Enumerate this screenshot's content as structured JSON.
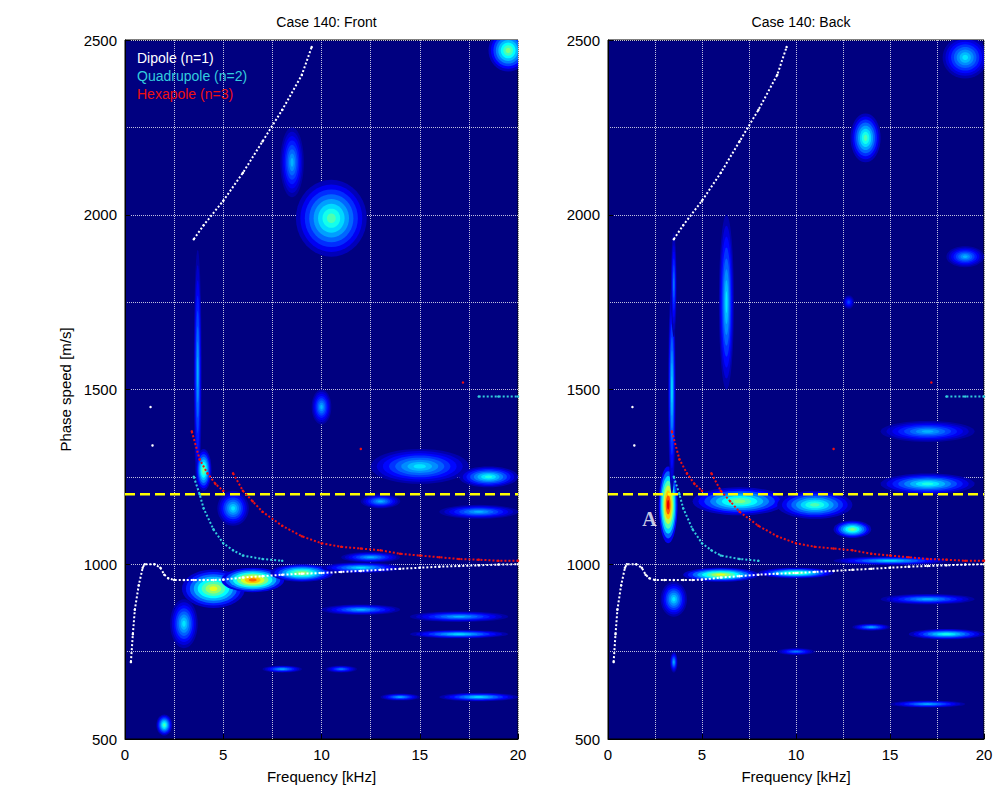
{
  "chart_data": [
    {
      "type": "heatmap",
      "title": "Case 140: Front",
      "x_label": "Frequency [kHz]",
      "y_label": "Phase speed [m/s]",
      "xlim": [
        0,
        20
      ],
      "xticks": [
        0,
        5,
        10,
        15,
        20
      ],
      "ylim": [
        500,
        2500
      ],
      "yticks": [
        500,
        1000,
        1500,
        2000,
        2500
      ],
      "grid": true,
      "legend": "upper left",
      "zlim": [
        0,
        1
      ],
      "blobs": [
        [
          4.5,
          930,
          1.6,
          55,
          0.6
        ],
        [
          6.5,
          955,
          1.6,
          35,
          0.78
        ],
        [
          9,
          975,
          1.6,
          25,
          0.55
        ],
        [
          12,
          990,
          2,
          15,
          0.35
        ],
        [
          3,
          830,
          0.7,
          70,
          0.35
        ],
        [
          3.7,
          1550,
          0.2,
          350,
          0.3
        ],
        [
          4,
          1270,
          0.4,
          60,
          0.5
        ],
        [
          5.5,
          1160,
          0.8,
          50,
          0.35
        ],
        [
          10.5,
          1990,
          1.8,
          110,
          0.45
        ],
        [
          8.5,
          2150,
          0.6,
          100,
          0.3
        ],
        [
          19.5,
          2470,
          1,
          60,
          0.5
        ],
        [
          10,
          1450,
          0.5,
          50,
          0.3
        ],
        [
          15,
          1280,
          2.5,
          50,
          0.35
        ],
        [
          18.5,
          1250,
          1.5,
          30,
          0.4
        ],
        [
          8,
          700,
          1,
          10,
          0.3
        ],
        [
          12,
          870,
          2,
          15,
          0.3
        ],
        [
          17,
          850,
          2.5,
          15,
          0.3
        ],
        [
          17,
          800,
          2.5,
          12,
          0.35
        ],
        [
          18,
          620,
          2,
          12,
          0.35
        ],
        [
          14,
          620,
          1,
          10,
          0.3
        ],
        [
          11,
          700,
          0.8,
          10,
          0.25
        ],
        [
          18,
          1150,
          2,
          20,
          0.3
        ],
        [
          2,
          540,
          0.4,
          30,
          0.45
        ],
        [
          12.5,
          1020,
          1.5,
          15,
          0.3
        ],
        [
          13,
          1180,
          1,
          20,
          0.3
        ]
      ],
      "reference_line": {
        "y": 1200,
        "color": "#ffff00",
        "line_style": "dashed"
      },
      "series": [
        {
          "name": "Dipole (n=1)",
          "color": "#ffffff",
          "type": "line",
          "line_style": "dotted",
          "marker": "dot",
          "points": [
            [
              0.3,
              720
            ],
            [
              0.4,
              800
            ],
            [
              0.5,
              870
            ],
            [
              0.7,
              940
            ],
            [
              0.9,
              990
            ],
            [
              1,
              1000
            ],
            [
              1.5,
              1000
            ],
            [
              1.8,
              990
            ],
            [
              2,
              970
            ],
            [
              2.2,
              960
            ],
            [
              2.5,
              955
            ],
            [
              3,
              955
            ],
            [
              3.5,
              955
            ],
            [
              4,
              955
            ],
            [
              4.5,
              955
            ],
            [
              5,
              956
            ],
            [
              6,
              962
            ],
            [
              7,
              966
            ],
            [
              8,
              970
            ],
            [
              9,
              973
            ],
            [
              10,
              975
            ],
            [
              11,
              978
            ],
            [
              12,
              981
            ],
            [
              13,
              984
            ],
            [
              14,
              987
            ],
            [
              15,
              990
            ],
            [
              16,
              993
            ],
            [
              17,
              995
            ],
            [
              18,
              997
            ],
            [
              19,
              999
            ],
            [
              20,
              1000
            ],
            null,
            [
              3.5,
              1930
            ],
            [
              4,
              1970
            ],
            [
              5,
              2040
            ],
            [
              6,
              2120
            ],
            [
              7,
              2210
            ],
            [
              8,
              2300
            ],
            [
              9,
              2400
            ],
            [
              9.5,
              2480
            ],
            null,
            [
              1.3,
              1450
            ],
            null,
            [
              1.4,
              1340
            ]
          ]
        },
        {
          "name": "Quadrupole (n=2)",
          "color": "#33ccdd",
          "type": "line",
          "line_style": "dotted",
          "marker": "dot",
          "points": [
            [
              3.5,
              1250
            ],
            [
              3.8,
              1200
            ],
            [
              4,
              1160
            ],
            [
              4.5,
              1100
            ],
            [
              5,
              1060
            ],
            [
              5.5,
              1040
            ],
            [
              6,
              1025
            ],
            [
              7,
              1015
            ],
            [
              8,
              1010
            ],
            null,
            [
              18,
              1480
            ],
            [
              19,
              1480
            ],
            [
              20,
              1480
            ]
          ]
        },
        {
          "name": "Hexapole (n=3)",
          "color": "#ee1111",
          "type": "line",
          "line_style": "dotted",
          "marker": "dot",
          "points": [
            [
              3.4,
              1380
            ],
            [
              3.8,
              1300
            ],
            [
              4.2,
              1260
            ],
            [
              4.6,
              1230
            ],
            [
              5,
              1210
            ],
            null,
            [
              5.5,
              1260
            ],
            [
              6,
              1210
            ],
            [
              6.5,
              1180
            ],
            [
              7,
              1150
            ],
            [
              8,
              1110
            ],
            [
              9,
              1080
            ],
            [
              10,
              1060
            ],
            [
              11,
              1050
            ],
            [
              12,
              1045
            ],
            [
              13,
              1040
            ],
            [
              14,
              1030
            ],
            [
              15,
              1025
            ],
            [
              16,
              1020
            ],
            [
              17,
              1015
            ],
            [
              18,
              1013
            ],
            [
              19,
              1010
            ],
            [
              20,
              1010
            ],
            null,
            [
              12,
              1330
            ],
            null,
            [
              17.2,
              1520
            ]
          ]
        }
      ]
    },
    {
      "type": "heatmap",
      "title": "Case 140: Back",
      "x_label": "Frequency [kHz]",
      "xlim": [
        0,
        20
      ],
      "xticks": [
        0,
        5,
        10,
        15,
        20
      ],
      "ylim": [
        500,
        2500
      ],
      "yticks": [
        500,
        1000,
        1500,
        2000,
        2500
      ],
      "grid": true,
      "zlim": [
        0,
        1
      ],
      "blobs": [
        [
          3.2,
          1170,
          0.5,
          110,
          0.9
        ],
        [
          3.4,
          1500,
          0.2,
          300,
          0.35
        ],
        [
          3.5,
          1800,
          0.15,
          150,
          0.25
        ],
        [
          6.3,
          1750,
          0.4,
          250,
          0.35
        ],
        [
          7,
          1180,
          2.5,
          40,
          0.5
        ],
        [
          11,
          1170,
          2,
          40,
          0.45
        ],
        [
          13,
          1100,
          1,
          25,
          0.5
        ],
        [
          17,
          1230,
          2.5,
          30,
          0.4
        ],
        [
          17,
          1380,
          2.5,
          30,
          0.3
        ],
        [
          6,
          970,
          2,
          20,
          0.6
        ],
        [
          10,
          975,
          2,
          15,
          0.5
        ],
        [
          3.5,
          900,
          0.7,
          50,
          0.35
        ],
        [
          13.7,
          2220,
          0.8,
          70,
          0.45
        ],
        [
          19,
          2450,
          1.2,
          60,
          0.35
        ],
        [
          12.8,
          1750,
          0.3,
          20,
          0.2
        ],
        [
          19,
          1880,
          1,
          30,
          0.3
        ],
        [
          17,
          900,
          2.5,
          15,
          0.3
        ],
        [
          18,
          800,
          2,
          15,
          0.4
        ],
        [
          14,
          820,
          1,
          10,
          0.3
        ],
        [
          17,
          600,
          2,
          10,
          0.3
        ],
        [
          10,
          750,
          1,
          10,
          0.25
        ],
        [
          3.5,
          720,
          0.2,
          30,
          0.3
        ],
        [
          15,
          1010,
          3,
          12,
          0.35
        ]
      ],
      "reference_line": {
        "y": 1200,
        "color": "#ffff00",
        "line_style": "dashed"
      },
      "annotations": [
        {
          "text": "A",
          "x": 2.2,
          "y": 1130
        }
      ],
      "series": [
        {
          "color": "#ffffff",
          "type": "line",
          "line_style": "dotted",
          "marker": "dot",
          "points": [
            [
              0.3,
              720
            ],
            [
              0.4,
              800
            ],
            [
              0.5,
              870
            ],
            [
              0.7,
              940
            ],
            [
              0.9,
              990
            ],
            [
              1,
              1000
            ],
            [
              1.5,
              1000
            ],
            [
              1.8,
              990
            ],
            [
              2,
              970
            ],
            [
              2.2,
              960
            ],
            [
              2.5,
              955
            ],
            [
              3,
              955
            ],
            [
              3.5,
              955
            ],
            [
              4,
              955
            ],
            [
              4.5,
              955
            ],
            [
              5,
              956
            ],
            [
              6,
              962
            ],
            [
              7,
              966
            ],
            [
              8,
              970
            ],
            [
              9,
              973
            ],
            [
              10,
              975
            ],
            [
              11,
              978
            ],
            [
              12,
              981
            ],
            [
              13,
              984
            ],
            [
              14,
              987
            ],
            [
              15,
              990
            ],
            [
              16,
              993
            ],
            [
              17,
              995
            ],
            [
              18,
              997
            ],
            [
              19,
              999
            ],
            [
              20,
              1000
            ],
            null,
            [
              3.5,
              1930
            ],
            [
              4,
              1970
            ],
            [
              5,
              2040
            ],
            [
              6,
              2120
            ],
            [
              7,
              2210
            ],
            [
              8,
              2300
            ],
            [
              9,
              2400
            ],
            [
              9.5,
              2480
            ],
            null,
            [
              1.3,
              1450
            ],
            null,
            [
              1.4,
              1340
            ]
          ]
        },
        {
          "color": "#33ccdd",
          "type": "line",
          "line_style": "dotted",
          "marker": "dot",
          "points": [
            [
              3.5,
              1250
            ],
            [
              3.8,
              1200
            ],
            [
              4,
              1160
            ],
            [
              4.5,
              1100
            ],
            [
              5,
              1060
            ],
            [
              5.5,
              1040
            ],
            [
              6,
              1025
            ],
            [
              7,
              1015
            ],
            [
              8,
              1010
            ],
            null,
            [
              18,
              1480
            ],
            [
              19,
              1480
            ],
            [
              20,
              1480
            ]
          ]
        },
        {
          "color": "#ee1111",
          "type": "line",
          "line_style": "dotted",
          "marker": "dot",
          "points": [
            [
              3.4,
              1380
            ],
            [
              3.8,
              1300
            ],
            [
              4.2,
              1260
            ],
            [
              4.6,
              1230
            ],
            [
              5,
              1210
            ],
            null,
            [
              5.5,
              1260
            ],
            [
              6,
              1210
            ],
            [
              6.5,
              1180
            ],
            [
              7,
              1150
            ],
            [
              8,
              1110
            ],
            [
              9,
              1080
            ],
            [
              10,
              1060
            ],
            [
              11,
              1050
            ],
            [
              12,
              1045
            ],
            [
              13,
              1040
            ],
            [
              14,
              1030
            ],
            [
              15,
              1025
            ],
            [
              16,
              1020
            ],
            [
              17,
              1015
            ],
            [
              18,
              1013
            ],
            [
              19,
              1010
            ],
            [
              20,
              1010
            ],
            null,
            [
              12,
              1330
            ],
            null,
            [
              17.2,
              1520
            ]
          ]
        }
      ]
    }
  ]
}
